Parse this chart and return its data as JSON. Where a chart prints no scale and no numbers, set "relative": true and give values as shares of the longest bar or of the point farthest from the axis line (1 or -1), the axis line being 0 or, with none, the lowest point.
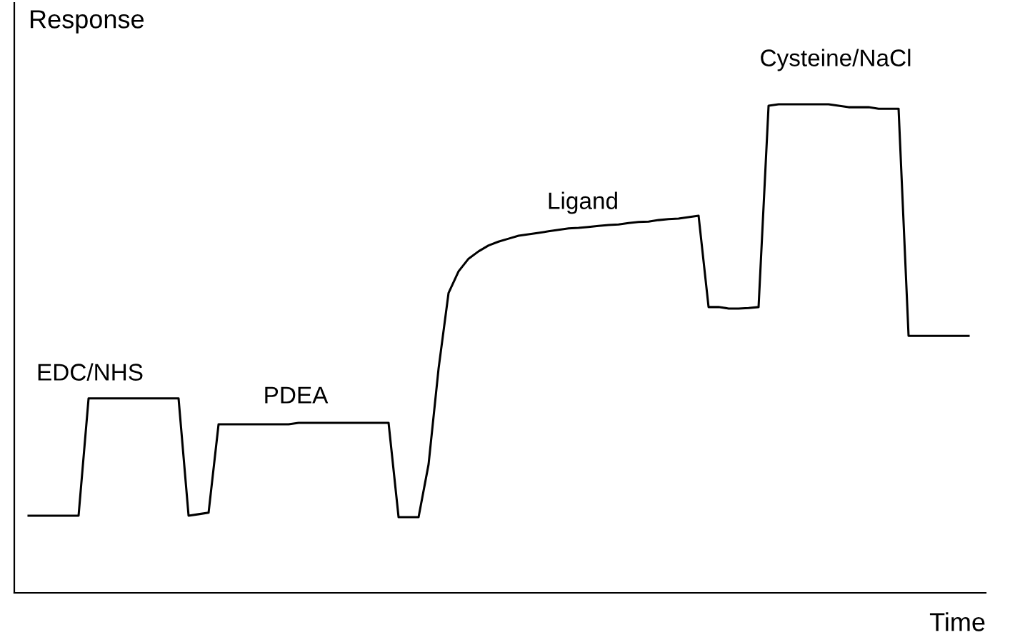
{
  "chart_data": {
    "type": "line",
    "relative": true,
    "xlabel": "Time",
    "ylabel": "Response",
    "categories": [
      null,
      null,
      null,
      null,
      null,
      null,
      null,
      null,
      null,
      null,
      null,
      null,
      null,
      null,
      null,
      null,
      null,
      null,
      null,
      null,
      null,
      null,
      null,
      null,
      null,
      null,
      null,
      null,
      null,
      null,
      null,
      null,
      null,
      null,
      null,
      null,
      null,
      null,
      null,
      null,
      null,
      null,
      null,
      null,
      null,
      null,
      null,
      null,
      null,
      null,
      null,
      null,
      null,
      null,
      null,
      null,
      null,
      null,
      null,
      null,
      null,
      null,
      null,
      null,
      null,
      null,
      null,
      null,
      null,
      null,
      null,
      null,
      null,
      null,
      null,
      null,
      null,
      null,
      null,
      null,
      null,
      null,
      null,
      null,
      null,
      null,
      null,
      null,
      null,
      null,
      null,
      null,
      null,
      null,
      null
    ],
    "series": [
      {
        "color": "#000000",
        "values": [
          0.158,
          0.158,
          0.158,
          0.158,
          0.158,
          0.158,
          0.398,
          0.398,
          0.398,
          0.398,
          0.398,
          0.398,
          0.398,
          0.398,
          0.398,
          0.398,
          0.158,
          0.161,
          0.164,
          0.345,
          0.345,
          0.345,
          0.345,
          0.345,
          0.345,
          0.345,
          0.345,
          0.348,
          0.348,
          0.348,
          0.348,
          0.348,
          0.348,
          0.348,
          0.348,
          0.348,
          0.348,
          0.155,
          0.155,
          0.155,
          0.263,
          0.459,
          0.614,
          0.658,
          0.684,
          0.699,
          0.711,
          0.719,
          0.725,
          0.731,
          0.734,
          0.737,
          0.74,
          0.743,
          0.746,
          0.747,
          0.749,
          0.751,
          0.753,
          0.754,
          0.757,
          0.759,
          0.76,
          0.763,
          0.765,
          0.766,
          0.769,
          0.772,
          0.585,
          0.585,
          0.582,
          0.582,
          0.583,
          0.585,
          0.997,
          1.0,
          1.0,
          1.0,
          1.0,
          1.0,
          1.0,
          0.997,
          0.994,
          0.994,
          0.994,
          0.991,
          0.991,
          0.991,
          0.526,
          0.526,
          0.526,
          0.526,
          0.526,
          0.526,
          0.526
        ]
      }
    ],
    "annotations": [
      "EDC/NHS",
      "PDEA",
      "Ligand",
      "Cysteine/NaCl"
    ],
    "marker": "none",
    "line_style": "solid",
    "legend": false
  }
}
